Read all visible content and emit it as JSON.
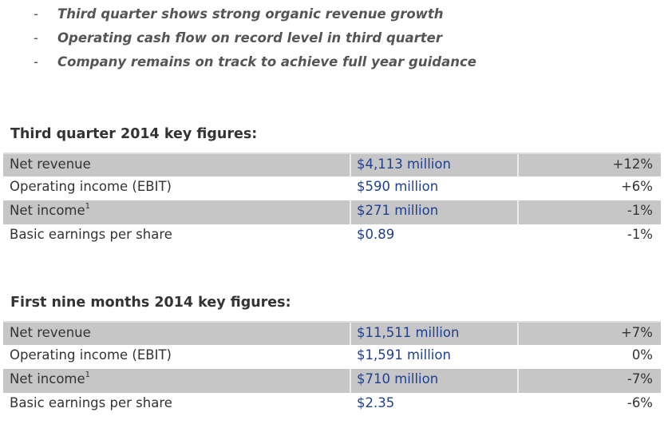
{
  "bullets": [
    "Third quarter shows strong organic revenue growth",
    "Operating cash flow on record level in third quarter",
    "Company remains on track to achieve full year guidance"
  ],
  "bullet_marker": "-",
  "q3": {
    "title": "Third quarter 2014 key figures:",
    "rows": [
      {
        "label": "Net revenue",
        "footnote": "",
        "value": "$4,113 million",
        "change": "+12%"
      },
      {
        "label": "Operating income (EBIT)",
        "footnote": "",
        "value": "$590 million",
        "change": "+6%"
      },
      {
        "label": "Net income",
        "footnote": "1",
        "value": "$271 million",
        "change": "-1%"
      },
      {
        "label": "Basic earnings per share",
        "footnote": "",
        "value": "$0.89",
        "change": "-1%"
      }
    ]
  },
  "nine_months": {
    "title": "First nine months 2014 key figures:",
    "rows": [
      {
        "label": "Net revenue",
        "footnote": "",
        "value": "$11,511 million",
        "change": "+7%"
      },
      {
        "label": "Operating income (EBIT)",
        "footnote": "",
        "value": "$1,591 million",
        "change": "0%"
      },
      {
        "label": "Net income",
        "footnote": "1",
        "value": "$710 million",
        "change": "-7%"
      },
      {
        "label": "Basic earnings per share",
        "footnote": "",
        "value": "$2.35",
        "change": "-6%"
      }
    ]
  },
  "colors": {
    "value_blue": "#1f3f8f",
    "row_shade": "#c6c6c6",
    "bullet_text": "#555555"
  }
}
